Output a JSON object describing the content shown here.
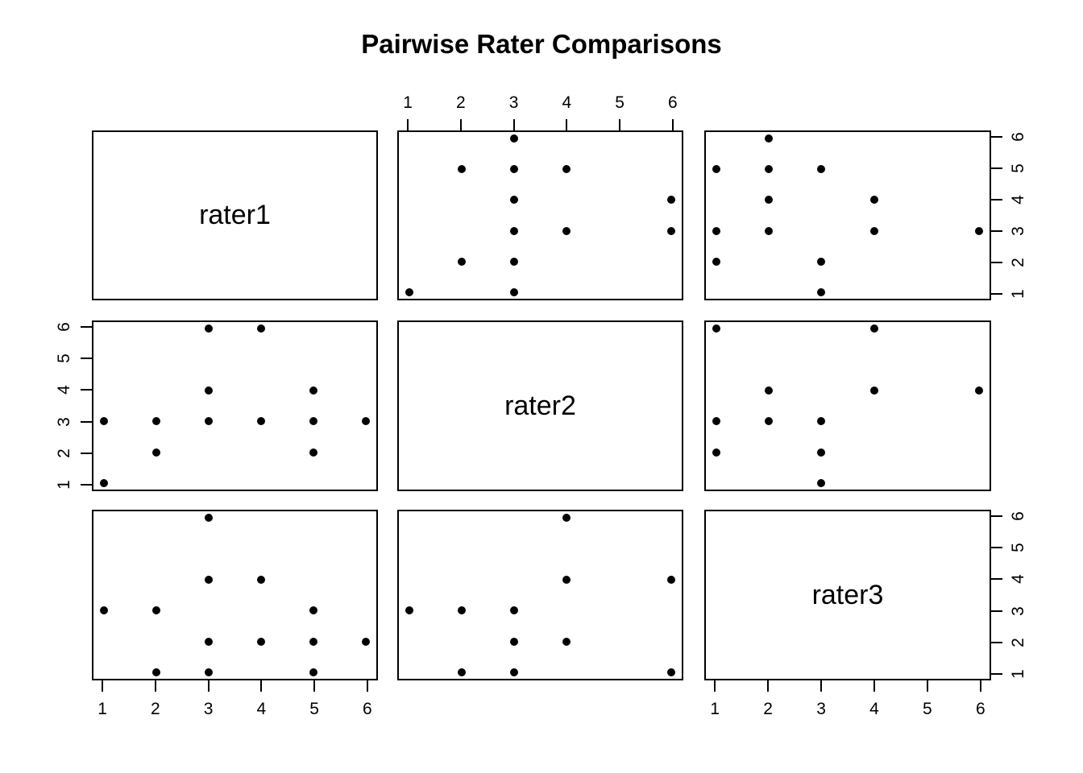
{
  "title": "Pairwise Rater Comparisons",
  "colors": {
    "foreground": "#000000",
    "background": "#ffffff"
  },
  "chart_data": {
    "type": "scatter",
    "subtype": "pairs-matrix",
    "title": "Pairwise Rater Comparisons",
    "variables": [
      "rater1",
      "rater2",
      "rater3"
    ],
    "axis_range": [
      1,
      6
    ],
    "tick_labels": [
      "1",
      "2",
      "3",
      "4",
      "5",
      "6"
    ],
    "grid": false,
    "point_style": "filled-black-circle",
    "panels": [
      {
        "row": 1,
        "col": 2,
        "x_var": "rater2",
        "y_var": "rater1",
        "points": [
          [
            3,
            6
          ],
          [
            2,
            5
          ],
          [
            3,
            5
          ],
          [
            4,
            5
          ],
          [
            3,
            4
          ],
          [
            6,
            4
          ],
          [
            3,
            3
          ],
          [
            4,
            3
          ],
          [
            6,
            3
          ],
          [
            2,
            2
          ],
          [
            3,
            2
          ],
          [
            1,
            1
          ],
          [
            3,
            1
          ]
        ]
      },
      {
        "row": 1,
        "col": 3,
        "x_var": "rater3",
        "y_var": "rater1",
        "points": [
          [
            2,
            6
          ],
          [
            1,
            5
          ],
          [
            2,
            5
          ],
          [
            3,
            5
          ],
          [
            2,
            4
          ],
          [
            4,
            4
          ],
          [
            1,
            3
          ],
          [
            2,
            3
          ],
          [
            4,
            3
          ],
          [
            6,
            3
          ],
          [
            1,
            2
          ],
          [
            3,
            2
          ],
          [
            3,
            1
          ]
        ]
      },
      {
        "row": 2,
        "col": 1,
        "x_var": "rater1",
        "y_var": "rater2",
        "points": [
          [
            3,
            6
          ],
          [
            4,
            6
          ],
          [
            3,
            4
          ],
          [
            5,
            4
          ],
          [
            1,
            3
          ],
          [
            2,
            3
          ],
          [
            3,
            3
          ],
          [
            4,
            3
          ],
          [
            5,
            3
          ],
          [
            6,
            3
          ],
          [
            2,
            2
          ],
          [
            5,
            2
          ],
          [
            1,
            1
          ]
        ]
      },
      {
        "row": 2,
        "col": 3,
        "x_var": "rater3",
        "y_var": "rater2",
        "points": [
          [
            1,
            6
          ],
          [
            4,
            6
          ],
          [
            2,
            4
          ],
          [
            4,
            4
          ],
          [
            6,
            4
          ],
          [
            1,
            3
          ],
          [
            2,
            3
          ],
          [
            3,
            3
          ],
          [
            1,
            2
          ],
          [
            3,
            2
          ],
          [
            3,
            1
          ]
        ]
      },
      {
        "row": 3,
        "col": 1,
        "x_var": "rater1",
        "y_var": "rater3",
        "points": [
          [
            3,
            6
          ],
          [
            3,
            4
          ],
          [
            4,
            4
          ],
          [
            1,
            3
          ],
          [
            2,
            3
          ],
          [
            5,
            3
          ],
          [
            3,
            2
          ],
          [
            4,
            2
          ],
          [
            5,
            2
          ],
          [
            6,
            2
          ],
          [
            2,
            1
          ],
          [
            3,
            1
          ],
          [
            5,
            1
          ]
        ]
      },
      {
        "row": 3,
        "col": 2,
        "x_var": "rater2",
        "y_var": "rater3",
        "points": [
          [
            4,
            6
          ],
          [
            4,
            4
          ],
          [
            6,
            4
          ],
          [
            1,
            3
          ],
          [
            2,
            3
          ],
          [
            3,
            3
          ],
          [
            3,
            2
          ],
          [
            4,
            2
          ],
          [
            2,
            1
          ],
          [
            3,
            1
          ],
          [
            6,
            1
          ]
        ]
      }
    ],
    "axes": [
      {
        "side": "top",
        "row": 1,
        "col": 2,
        "labels": [
          "1",
          "2",
          "3",
          "4",
          "5",
          "6"
        ]
      },
      {
        "side": "right",
        "row": 1,
        "col": 3,
        "labels": [
          "1",
          "2",
          "3",
          "4",
          "5",
          "6"
        ]
      },
      {
        "side": "left",
        "row": 2,
        "col": 1,
        "labels": [
          "1",
          "2",
          "3",
          "4",
          "5",
          "6"
        ]
      },
      {
        "side": "bottom",
        "row": 3,
        "col": 1,
        "labels": [
          "1",
          "2",
          "3",
          "4",
          "5",
          "6"
        ]
      },
      {
        "side": "right",
        "row": 3,
        "col": 3,
        "labels": [
          "1",
          "2",
          "3",
          "4",
          "5",
          "6"
        ]
      },
      {
        "side": "bottom",
        "row": 3,
        "col": 3,
        "labels": [
          "1",
          "2",
          "3",
          "4",
          "5",
          "6"
        ]
      }
    ]
  }
}
